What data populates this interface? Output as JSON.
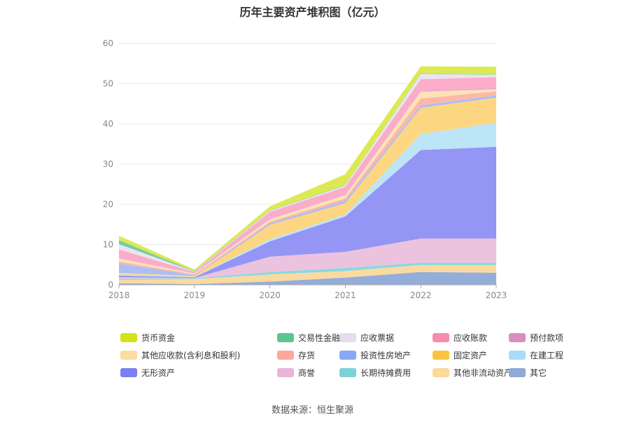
{
  "title": "历年主要资产堆积图（亿元）",
  "source": "数据来源：恒生聚源",
  "chart_data": {
    "type": "area",
    "stacked": true,
    "title": "历年主要资产堆积图（亿元）",
    "xlabel": "",
    "ylabel": "",
    "ylim": [
      0,
      60
    ],
    "yticks": [
      0,
      10,
      20,
      30,
      40,
      50,
      60
    ],
    "x": [
      "2018",
      "2019",
      "2020",
      "2021",
      "2022",
      "2023"
    ],
    "grid": true,
    "legend_position": "bottom",
    "series": [
      {
        "name": "其它",
        "color": "#8eaad8",
        "values": [
          0.4,
          0.2,
          0.8,
          1.8,
          3.2,
          3.0
        ]
      },
      {
        "name": "其他非流动资产",
        "color": "#fbd89a",
        "values": [
          0.8,
          1.2,
          1.8,
          1.6,
          1.7,
          1.9
        ]
      },
      {
        "name": "长期待摊费用",
        "color": "#86d6dc",
        "values": [
          0.3,
          0.2,
          0.6,
          0.8,
          0.6,
          0.6
        ]
      },
      {
        "name": "商誉",
        "color": "#eac0dd",
        "values": [
          0.4,
          0.1,
          3.8,
          4.0,
          6.0,
          6.0
        ]
      },
      {
        "name": "无形资产",
        "color": "#8f8ff4",
        "values": [
          0.4,
          0.2,
          3.8,
          8.8,
          22.0,
          22.8
        ]
      },
      {
        "name": "在建工程",
        "color": "#b8e4f8",
        "values": [
          0.3,
          0.1,
          0.5,
          0.5,
          4.0,
          6.0
        ]
      },
      {
        "name": "固定资产",
        "color": "#fdd47a",
        "values": [
          0.4,
          0.2,
          3.6,
          2.8,
          6.5,
          6.2
        ]
      },
      {
        "name": "投资性房地产",
        "color": "#a6baf5",
        "values": [
          2.3,
          0.2,
          0.4,
          0.6,
          0.6,
          0.6
        ]
      },
      {
        "name": "存货",
        "color": "#fdb4a4",
        "values": [
          0.5,
          0.2,
          0.4,
          0.6,
          1.7,
          1.0
        ]
      },
      {
        "name": "其他应收款(含利息和股利)",
        "color": "#fde2b0",
        "values": [
          0.8,
          0.2,
          0.6,
          0.8,
          1.7,
          0.5
        ]
      },
      {
        "name": "预付款项",
        "color": "#e6a0d2",
        "values": [
          0.2,
          0.1,
          0.2,
          0.2,
          0.3,
          0.3
        ]
      },
      {
        "name": "应收账款",
        "color": "#fba8c6",
        "values": [
          2.0,
          0.3,
          1.6,
          1.8,
          2.8,
          2.7
        ]
      },
      {
        "name": "应收票据",
        "color": "#ebe2ef",
        "values": [
          1.3,
          0.1,
          0.3,
          0.4,
          1.3,
          0.6
        ]
      },
      {
        "name": "交易性金融资产",
        "color": "#6ccc9c",
        "values": [
          1.0,
          0.1,
          0.1,
          0.1,
          0.1,
          0.1
        ]
      },
      {
        "name": "货币资金",
        "color": "#dbe84a",
        "values": [
          1.1,
          0.4,
          1.0,
          2.7,
          1.8,
          1.9
        ]
      }
    ],
    "legend_order": [
      "货币资金",
      "交易性金融资产",
      "应收票据",
      "应收账款",
      "预付款项",
      "其他应收款(含利息和股利)",
      "存货",
      "投资性房地产",
      "固定资产",
      "在建工程",
      "无形资产",
      "商誉",
      "长期待摊费用",
      "其他非流动资产",
      "其它"
    ],
    "legend_colors": {
      "货币资金": "#d4e21a",
      "交易性金融资产": "#5cc48f",
      "应收票据": "#e6dcee",
      "应收账款": "#f98bb1",
      "预付款项": "#dc8cc4",
      "其他应收款(含利息和股利)": "#fddca0",
      "存货": "#fca89a",
      "投资性房地产": "#8aa6f6",
      "固定资产": "#fcc43e",
      "在建工程": "#a8dcf8",
      "无形资产": "#7b7ff0",
      "商誉": "#e8b4d8",
      "长期待摊费用": "#7dd2d8",
      "其他非流动资产": "#fcd89a",
      "其它": "#8eaad6"
    }
  }
}
